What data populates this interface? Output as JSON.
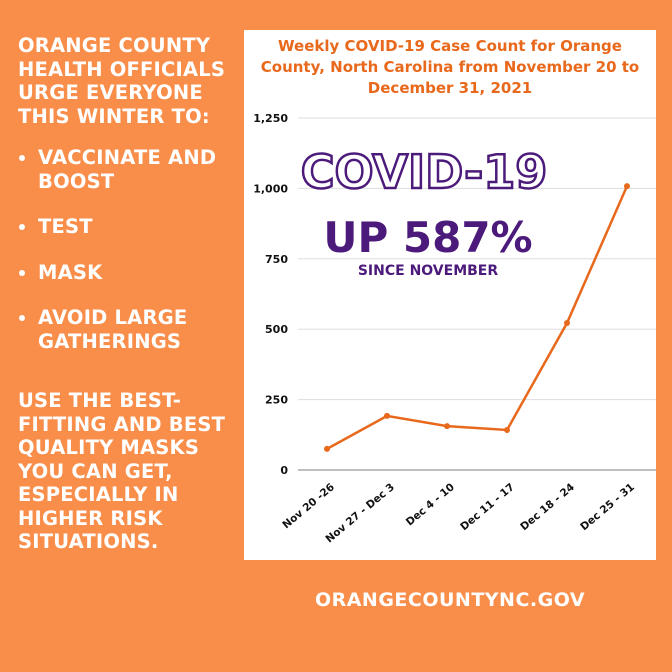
{
  "left_panel": {
    "heading": "ORANGE COUNTY HEALTH OFFICIALS URGE EVERYONE THIS WINTER TO:",
    "actions": [
      "VACCINATE AND BOOST",
      "TEST",
      "MASK",
      "AVOID LARGE GATHERINGS"
    ],
    "tip": "USE THE BEST-FITTING AND BEST QUALITY MASKS YOU CAN GET, ESPECIALLY IN HIGHER RISK SITUATIONS."
  },
  "footer": {
    "website": "ORANGECOUNTYNC.GOV"
  },
  "overlay": {
    "headline": "COVID-19",
    "stat": "UP 587%",
    "subtext": "SINCE NOVEMBER"
  },
  "colors": {
    "background": "#F98E4B",
    "line": "#E8681C",
    "purple": "#4B1A7A"
  },
  "chart_data": {
    "type": "line",
    "title": "Weekly COVID-19 Case Count for Orange County, North Carolina from November 20 to December 31, 2021",
    "categories": [
      "Nov 20 -26",
      "Nov 27 - Dec 3",
      "Dec 4 - 10",
      "Dec 11 - 17",
      "Dec 18 - 24",
      "Dec 25 - 31"
    ],
    "values": [
      75,
      192,
      156,
      142,
      522,
      1008
    ],
    "ylim": [
      0,
      1250
    ],
    "yticks": [
      0,
      250,
      500,
      750,
      1000,
      1250
    ],
    "ytick_labels": [
      "0",
      "250",
      "500",
      "750",
      "1,000",
      "1,250"
    ],
    "grid": true
  }
}
